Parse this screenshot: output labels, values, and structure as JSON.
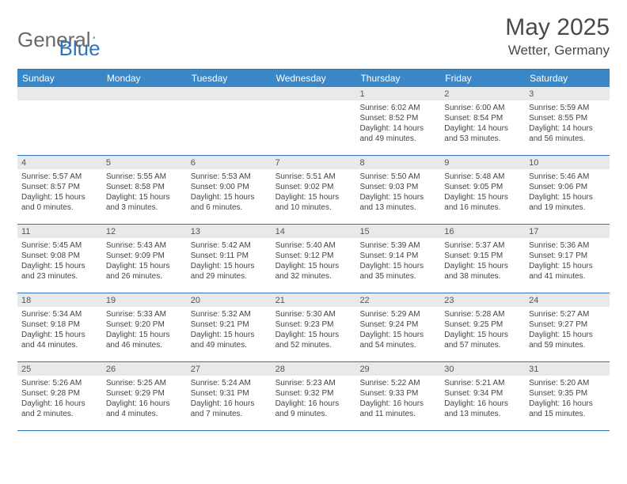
{
  "brand": {
    "part1": "General",
    "part2": "Blue"
  },
  "title": "May 2025",
  "location": "Wetter, Germany",
  "colors": {
    "header_bg": "#3a87c8",
    "border": "#2f76b8",
    "daybar_bg": "#e7e9ea",
    "text": "#4a4a4a"
  },
  "weekdays": [
    "Sunday",
    "Monday",
    "Tuesday",
    "Wednesday",
    "Thursday",
    "Friday",
    "Saturday"
  ],
  "weeks": [
    [
      {
        "n": "",
        "sr": "",
        "ss": "",
        "dl": ""
      },
      {
        "n": "",
        "sr": "",
        "ss": "",
        "dl": ""
      },
      {
        "n": "",
        "sr": "",
        "ss": "",
        "dl": ""
      },
      {
        "n": "",
        "sr": "",
        "ss": "",
        "dl": ""
      },
      {
        "n": "1",
        "sr": "Sunrise: 6:02 AM",
        "ss": "Sunset: 8:52 PM",
        "dl": "Daylight: 14 hours and 49 minutes."
      },
      {
        "n": "2",
        "sr": "Sunrise: 6:00 AM",
        "ss": "Sunset: 8:54 PM",
        "dl": "Daylight: 14 hours and 53 minutes."
      },
      {
        "n": "3",
        "sr": "Sunrise: 5:59 AM",
        "ss": "Sunset: 8:55 PM",
        "dl": "Daylight: 14 hours and 56 minutes."
      }
    ],
    [
      {
        "n": "4",
        "sr": "Sunrise: 5:57 AM",
        "ss": "Sunset: 8:57 PM",
        "dl": "Daylight: 15 hours and 0 minutes."
      },
      {
        "n": "5",
        "sr": "Sunrise: 5:55 AM",
        "ss": "Sunset: 8:58 PM",
        "dl": "Daylight: 15 hours and 3 minutes."
      },
      {
        "n": "6",
        "sr": "Sunrise: 5:53 AM",
        "ss": "Sunset: 9:00 PM",
        "dl": "Daylight: 15 hours and 6 minutes."
      },
      {
        "n": "7",
        "sr": "Sunrise: 5:51 AM",
        "ss": "Sunset: 9:02 PM",
        "dl": "Daylight: 15 hours and 10 minutes."
      },
      {
        "n": "8",
        "sr": "Sunrise: 5:50 AM",
        "ss": "Sunset: 9:03 PM",
        "dl": "Daylight: 15 hours and 13 minutes."
      },
      {
        "n": "9",
        "sr": "Sunrise: 5:48 AM",
        "ss": "Sunset: 9:05 PM",
        "dl": "Daylight: 15 hours and 16 minutes."
      },
      {
        "n": "10",
        "sr": "Sunrise: 5:46 AM",
        "ss": "Sunset: 9:06 PM",
        "dl": "Daylight: 15 hours and 19 minutes."
      }
    ],
    [
      {
        "n": "11",
        "sr": "Sunrise: 5:45 AM",
        "ss": "Sunset: 9:08 PM",
        "dl": "Daylight: 15 hours and 23 minutes."
      },
      {
        "n": "12",
        "sr": "Sunrise: 5:43 AM",
        "ss": "Sunset: 9:09 PM",
        "dl": "Daylight: 15 hours and 26 minutes."
      },
      {
        "n": "13",
        "sr": "Sunrise: 5:42 AM",
        "ss": "Sunset: 9:11 PM",
        "dl": "Daylight: 15 hours and 29 minutes."
      },
      {
        "n": "14",
        "sr": "Sunrise: 5:40 AM",
        "ss": "Sunset: 9:12 PM",
        "dl": "Daylight: 15 hours and 32 minutes."
      },
      {
        "n": "15",
        "sr": "Sunrise: 5:39 AM",
        "ss": "Sunset: 9:14 PM",
        "dl": "Daylight: 15 hours and 35 minutes."
      },
      {
        "n": "16",
        "sr": "Sunrise: 5:37 AM",
        "ss": "Sunset: 9:15 PM",
        "dl": "Daylight: 15 hours and 38 minutes."
      },
      {
        "n": "17",
        "sr": "Sunrise: 5:36 AM",
        "ss": "Sunset: 9:17 PM",
        "dl": "Daylight: 15 hours and 41 minutes."
      }
    ],
    [
      {
        "n": "18",
        "sr": "Sunrise: 5:34 AM",
        "ss": "Sunset: 9:18 PM",
        "dl": "Daylight: 15 hours and 44 minutes."
      },
      {
        "n": "19",
        "sr": "Sunrise: 5:33 AM",
        "ss": "Sunset: 9:20 PM",
        "dl": "Daylight: 15 hours and 46 minutes."
      },
      {
        "n": "20",
        "sr": "Sunrise: 5:32 AM",
        "ss": "Sunset: 9:21 PM",
        "dl": "Daylight: 15 hours and 49 minutes."
      },
      {
        "n": "21",
        "sr": "Sunrise: 5:30 AM",
        "ss": "Sunset: 9:23 PM",
        "dl": "Daylight: 15 hours and 52 minutes."
      },
      {
        "n": "22",
        "sr": "Sunrise: 5:29 AM",
        "ss": "Sunset: 9:24 PM",
        "dl": "Daylight: 15 hours and 54 minutes."
      },
      {
        "n": "23",
        "sr": "Sunrise: 5:28 AM",
        "ss": "Sunset: 9:25 PM",
        "dl": "Daylight: 15 hours and 57 minutes."
      },
      {
        "n": "24",
        "sr": "Sunrise: 5:27 AM",
        "ss": "Sunset: 9:27 PM",
        "dl": "Daylight: 15 hours and 59 minutes."
      }
    ],
    [
      {
        "n": "25",
        "sr": "Sunrise: 5:26 AM",
        "ss": "Sunset: 9:28 PM",
        "dl": "Daylight: 16 hours and 2 minutes."
      },
      {
        "n": "26",
        "sr": "Sunrise: 5:25 AM",
        "ss": "Sunset: 9:29 PM",
        "dl": "Daylight: 16 hours and 4 minutes."
      },
      {
        "n": "27",
        "sr": "Sunrise: 5:24 AM",
        "ss": "Sunset: 9:31 PM",
        "dl": "Daylight: 16 hours and 7 minutes."
      },
      {
        "n": "28",
        "sr": "Sunrise: 5:23 AM",
        "ss": "Sunset: 9:32 PM",
        "dl": "Daylight: 16 hours and 9 minutes."
      },
      {
        "n": "29",
        "sr": "Sunrise: 5:22 AM",
        "ss": "Sunset: 9:33 PM",
        "dl": "Daylight: 16 hours and 11 minutes."
      },
      {
        "n": "30",
        "sr": "Sunrise: 5:21 AM",
        "ss": "Sunset: 9:34 PM",
        "dl": "Daylight: 16 hours and 13 minutes."
      },
      {
        "n": "31",
        "sr": "Sunrise: 5:20 AM",
        "ss": "Sunset: 9:35 PM",
        "dl": "Daylight: 16 hours and 15 minutes."
      }
    ]
  ]
}
